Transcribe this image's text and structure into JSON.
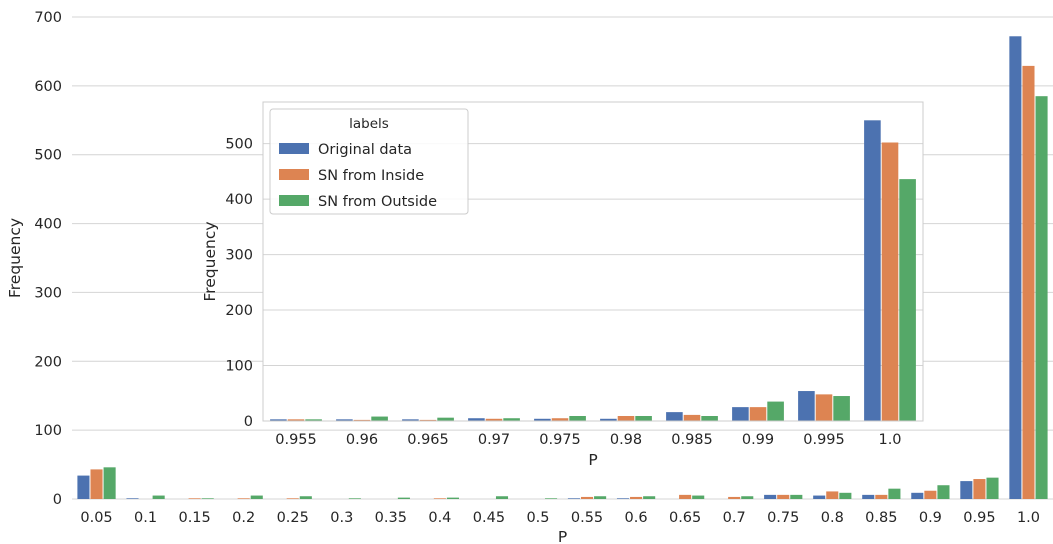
{
  "chart_data": [
    {
      "type": "bar",
      "categories": [
        "0.05",
        "0.1",
        "0.15",
        "0.2",
        "0.25",
        "0.3",
        "0.35",
        "0.4",
        "0.45",
        "0.5",
        "0.55",
        "0.6",
        "0.65",
        "0.7",
        "0.75",
        "0.8",
        "0.85",
        "0.9",
        "0.95",
        "1.0"
      ],
      "series": [
        {
          "name": "Original data",
          "color": "#4c72b0",
          "values": [
            34,
            1,
            0,
            0,
            0,
            0,
            0,
            0,
            0,
            0,
            1,
            1,
            0,
            0,
            6,
            5,
            6,
            9,
            26,
            672
          ]
        },
        {
          "name": "SN from Inside",
          "color": "#dd8452",
          "values": [
            43,
            0,
            1,
            1,
            1,
            0,
            0,
            1,
            0,
            0,
            3,
            3,
            6,
            3,
            6,
            11,
            6,
            12,
            29,
            629
          ]
        },
        {
          "name": "SN from Outside",
          "color": "#55a868",
          "values": [
            46,
            5,
            1,
            5,
            4,
            1,
            2,
            2,
            4,
            1,
            4,
            4,
            5,
            4,
            6,
            9,
            15,
            20,
            31,
            585
          ]
        }
      ],
      "xlabel": "P",
      "ylabel": "Frequency",
      "ylim": [
        0,
        700
      ],
      "yticks": [
        0,
        100,
        200,
        300,
        400,
        500,
        600,
        700
      ],
      "grid": "horizontal"
    },
    {
      "type": "bar",
      "categories": [
        "0.955",
        "0.96",
        "0.965",
        "0.97",
        "0.975",
        "0.98",
        "0.985",
        "0.99",
        "0.995",
        "1.0"
      ],
      "series": [
        {
          "name": "Original data",
          "color": "#4c72b0",
          "values": [
            3,
            3,
            3,
            5,
            4,
            4,
            16,
            25,
            54,
            542
          ]
        },
        {
          "name": "SN from Inside",
          "color": "#dd8452",
          "values": [
            3,
            2,
            2,
            4,
            5,
            9,
            11,
            25,
            48,
            502
          ]
        },
        {
          "name": "SN from Outside",
          "color": "#55a868",
          "values": [
            3,
            8,
            6,
            5,
            9,
            9,
            9,
            35,
            45,
            436
          ]
        }
      ],
      "xlabel": "P",
      "ylabel": "Frequency",
      "ylim": [
        0,
        575
      ],
      "yticks": [
        0,
        100,
        200,
        300,
        400,
        500
      ],
      "grid": "horizontal",
      "legend": {
        "title": "labels",
        "placement": "upper-left"
      }
    }
  ]
}
